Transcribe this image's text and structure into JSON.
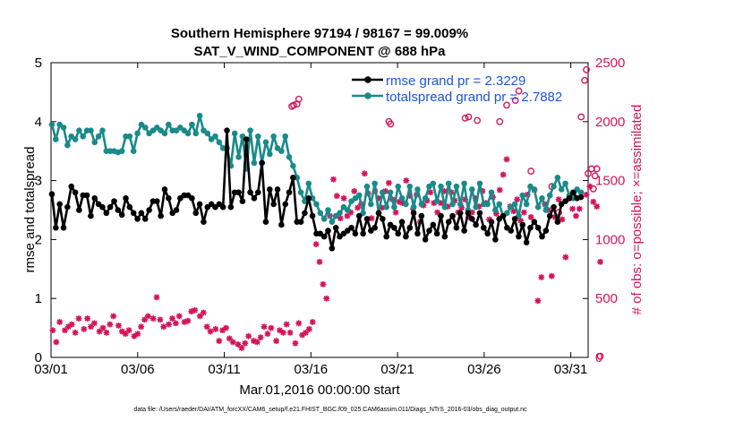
{
  "chart_data": {
    "type": "line",
    "title": "Southern Hemisphere 97194 / 98167 = 99.009%",
    "subtitle": "SAT_V_WIND_COMPONENT @ 688 hPa",
    "xlabel": "Mar.01,2016 00:00:00 start",
    "ylabel": "rmse and totalspread",
    "ylabel_right": "# of obs: o=possible; ×=assimilated",
    "footer": "data file: /Users/raeder/DAI/ATM_forcXX/CAM6_setup/f.e21.FHIST_BGC.f09_025.CAM6assim.011/Diags_NTrS_2016-03/obs_diag_output.nc",
    "x_ticks": [
      "03/01",
      "03/06",
      "03/11",
      "03/16",
      "03/21",
      "03/26",
      "03/31"
    ],
    "x_tick_days": [
      0,
      5,
      10,
      15,
      20,
      25,
      30
    ],
    "xlim": [
      0,
      31
    ],
    "ylim": [
      0,
      5
    ],
    "y_ticks": [
      "0",
      "1",
      "2",
      "3",
      "4",
      "5"
    ],
    "ylim_right": [
      0,
      2500
    ],
    "y_ticks_right": [
      "0",
      "500",
      "1000",
      "1500",
      "2000",
      "2500"
    ],
    "legend": [
      "rmse grand pr = 2.3229",
      "totalspread grand pr = 2.7882"
    ],
    "colors": {
      "rmse": "#000000",
      "spread": "#1a8a8a",
      "obs": "#d4145a",
      "legend_text": "#1a56d6"
    },
    "series": [
      {
        "name": "rmse",
        "values": [
          2.77,
          2.2,
          2.6,
          2.2,
          2.55,
          2.9,
          2.8,
          2.5,
          2.75,
          2.75,
          2.4,
          2.7,
          2.6,
          2.55,
          2.45,
          2.55,
          2.65,
          2.5,
          2.42,
          2.7,
          2.55,
          2.45,
          2.35,
          2.45,
          2.35,
          2.5,
          2.65,
          2.65,
          2.4,
          2.85,
          2.7,
          2.45,
          2.5,
          2.7,
          2.75,
          2.75,
          2.7,
          2.45,
          2.6,
          2.3,
          2.55,
          2.6,
          2.55,
          2.6,
          2.55,
          3.85,
          2.55,
          2.8,
          2.8,
          2.65,
          3.7,
          2.8,
          2.7,
          2.8,
          3.3,
          2.3,
          2.85,
          2.6,
          2.85,
          2.25,
          2.6,
          2.8,
          3.05,
          2.3,
          2.3,
          2.45,
          2.7,
          2.4,
          2.1,
          2.1,
          2.05,
          2.15,
          1.85,
          2.2,
          2.05,
          2.1,
          2.15,
          2.2,
          2.1,
          2.4,
          2.1,
          2.35,
          2.15,
          2.2,
          2.45,
          2.35,
          2.05,
          2.25,
          2.2,
          2.1,
          2.3,
          2.05,
          2.2,
          2.45,
          2.1,
          2.4,
          2.0,
          2.15,
          2.25,
          2.1,
          2.4,
          2.05,
          2.3,
          2.4,
          2.2,
          2.45,
          2.15,
          2.45,
          2.35,
          2.25,
          2.45,
          2.2,
          2.1,
          2.3,
          2.0,
          2.35,
          2.4,
          2.2,
          2.15,
          2.35,
          2.05,
          2.25,
          1.95,
          2.2,
          2.3,
          2.2,
          2.05,
          2.15,
          2.4,
          2.55,
          2.3,
          2.6,
          2.65,
          2.7,
          2.8,
          2.7,
          2.72
        ]
      },
      {
        "name": "totalspread",
        "values": [
          3.95,
          3.7,
          3.95,
          3.9,
          3.6,
          3.75,
          3.7,
          3.85,
          3.75,
          3.85,
          3.85,
          3.65,
          3.75,
          3.85,
          3.5,
          3.5,
          3.5,
          3.48,
          3.5,
          3.75,
          3.75,
          3.5,
          3.8,
          3.95,
          3.9,
          3.8,
          3.85,
          3.9,
          3.85,
          3.8,
          3.95,
          3.85,
          3.85,
          3.9,
          3.85,
          3.8,
          3.95,
          3.8,
          4.1,
          3.85,
          3.8,
          3.7,
          3.75,
          3.65,
          3.55,
          3.55,
          3.25,
          3.8,
          3.4,
          3.75,
          3.2,
          3.85,
          3.3,
          3.75,
          3.3,
          3.65,
          3.45,
          3.75,
          3.55,
          3.5,
          3.75,
          3.4,
          3.25,
          3.05,
          2.8,
          2.65,
          2.95,
          2.7,
          2.6,
          2.45,
          2.35,
          2.5,
          2.3,
          2.4,
          2.45,
          2.55,
          2.5,
          2.65,
          2.7,
          2.75,
          2.45,
          2.9,
          2.6,
          2.95,
          2.45,
          2.8,
          2.55,
          2.8,
          2.55,
          2.9,
          2.7,
          2.6,
          2.9,
          2.55,
          2.85,
          2.6,
          2.7,
          2.9,
          2.95,
          2.65,
          2.9,
          2.55,
          2.95,
          2.6,
          2.9,
          2.6,
          2.95,
          2.5,
          2.85,
          2.55,
          2.95,
          2.6,
          2.6,
          2.8,
          2.5,
          2.6,
          2.4,
          2.45,
          2.55,
          2.6,
          2.4,
          2.75,
          2.6,
          2.9,
          2.85,
          2.55,
          2.7,
          2.5,
          2.75,
          2.9,
          3.05,
          2.85,
          2.95,
          2.75,
          2.7,
          2.85,
          2.8
        ]
      },
      {
        "name": "obs_possible",
        "points": [
          [
            13.9,
            2130
          ],
          [
            14.0,
            2140
          ],
          [
            14.2,
            2150
          ],
          [
            14.3,
            2190
          ],
          [
            19.5,
            2000
          ],
          [
            19.6,
            1980
          ],
          [
            23.9,
            2030
          ],
          [
            24.1,
            2040
          ],
          [
            24.6,
            2010
          ],
          [
            25.9,
            2000
          ],
          [
            26.3,
            2140
          ],
          [
            26.8,
            2180
          ],
          [
            27.0,
            2260
          ],
          [
            27.7,
            1580
          ],
          [
            28.9,
            1450
          ],
          [
            29.3,
            1230
          ],
          [
            30.6,
            2040
          ],
          [
            30.8,
            2350
          ],
          [
            30.9,
            2440
          ],
          [
            31.0,
            1560
          ],
          [
            31.2,
            1600
          ],
          [
            31.3,
            1430
          ],
          [
            31.4,
            1540
          ],
          [
            31.5,
            1600
          ],
          [
            31.7,
            10
          ]
        ]
      },
      {
        "name": "obs_assimilated",
        "points": [
          [
            0.1,
            230
          ],
          [
            0.3,
            130
          ],
          [
            0.5,
            300
          ],
          [
            0.8,
            230
          ],
          [
            1.0,
            260
          ],
          [
            1.2,
            280
          ],
          [
            1.4,
            210
          ],
          [
            1.6,
            330
          ],
          [
            1.9,
            240
          ],
          [
            2.1,
            330
          ],
          [
            2.3,
            260
          ],
          [
            2.5,
            290
          ],
          [
            2.8,
            220
          ],
          [
            3.0,
            250
          ],
          [
            3.2,
            210
          ],
          [
            3.4,
            280
          ],
          [
            3.6,
            350
          ],
          [
            3.9,
            270
          ],
          [
            4.1,
            220
          ],
          [
            4.3,
            200
          ],
          [
            4.5,
            230
          ],
          [
            4.8,
            180
          ],
          [
            5.0,
            200
          ],
          [
            5.2,
            260
          ],
          [
            5.4,
            320
          ],
          [
            5.6,
            350
          ],
          [
            5.9,
            330
          ],
          [
            6.1,
            510
          ],
          [
            6.3,
            320
          ],
          [
            6.5,
            260
          ],
          [
            6.8,
            280
          ],
          [
            7.0,
            330
          ],
          [
            7.2,
            290
          ],
          [
            7.4,
            350
          ],
          [
            7.7,
            300
          ],
          [
            7.9,
            310
          ],
          [
            8.1,
            390
          ],
          [
            8.3,
            400
          ],
          [
            8.6,
            350
          ],
          [
            8.8,
            380
          ],
          [
            9.0,
            260
          ],
          [
            9.2,
            220
          ],
          [
            9.5,
            240
          ],
          [
            9.7,
            140
          ],
          [
            9.9,
            230
          ],
          [
            10.1,
            250
          ],
          [
            10.3,
            160
          ],
          [
            10.5,
            130
          ],
          [
            10.8,
            110
          ],
          [
            11.0,
            80
          ],
          [
            11.2,
            120
          ],
          [
            11.4,
            180
          ],
          [
            11.7,
            140
          ],
          [
            11.9,
            130
          ],
          [
            12.1,
            170
          ],
          [
            12.3,
            260
          ],
          [
            12.5,
            200
          ],
          [
            12.7,
            250
          ],
          [
            13.0,
            140
          ],
          [
            13.2,
            230
          ],
          [
            13.4,
            210
          ],
          [
            13.6,
            280
          ],
          [
            13.8,
            210
          ],
          [
            14.1,
            120
          ],
          [
            14.3,
            290
          ],
          [
            14.5,
            190
          ],
          [
            14.7,
            210
          ],
          [
            14.9,
            240
          ],
          [
            15.1,
            300
          ],
          [
            15.3,
            960
          ],
          [
            15.5,
            810
          ],
          [
            15.7,
            620
          ],
          [
            15.9,
            500
          ],
          [
            16.1,
            1200
          ],
          [
            16.3,
            1510
          ],
          [
            16.5,
            1370
          ],
          [
            16.7,
            1180
          ],
          [
            16.9,
            1350
          ],
          [
            17.1,
            1200
          ],
          [
            17.3,
            1230
          ],
          [
            17.5,
            1410
          ],
          [
            17.7,
            1270
          ],
          [
            17.9,
            1300
          ],
          [
            18.1,
            1560
          ],
          [
            18.3,
            1390
          ],
          [
            18.5,
            1180
          ],
          [
            18.7,
            1410
          ],
          [
            18.9,
            1350
          ],
          [
            19.1,
            1270
          ],
          [
            19.3,
            1410
          ],
          [
            19.5,
            1480
          ],
          [
            19.7,
            1340
          ],
          [
            19.9,
            1230
          ],
          [
            20.1,
            1320
          ],
          [
            20.3,
            1310
          ],
          [
            20.5,
            1500
          ],
          [
            20.7,
            1370
          ],
          [
            20.9,
            1260
          ],
          [
            21.1,
            1380
          ],
          [
            21.3,
            1150
          ],
          [
            21.5,
            1290
          ],
          [
            21.7,
            1330
          ],
          [
            21.9,
            1400
          ],
          [
            22.1,
            1310
          ],
          [
            22.3,
            1230
          ],
          [
            22.5,
            1310
          ],
          [
            22.7,
            1410
          ],
          [
            22.9,
            1280
          ],
          [
            23.1,
            1400
          ],
          [
            23.3,
            1330
          ],
          [
            23.5,
            1230
          ],
          [
            23.7,
            1270
          ],
          [
            23.9,
            1340
          ],
          [
            24.1,
            1190
          ],
          [
            24.3,
            1230
          ],
          [
            24.5,
            1350
          ],
          [
            24.7,
            1280
          ],
          [
            24.9,
            1410
          ],
          [
            25.1,
            1310
          ],
          [
            25.3,
            1170
          ],
          [
            25.5,
            1360
          ],
          [
            25.7,
            1220
          ],
          [
            25.9,
            1420
          ],
          [
            26.1,
            1550
          ],
          [
            26.3,
            1680
          ],
          [
            26.5,
            1280
          ],
          [
            26.7,
            1240
          ],
          [
            26.9,
            1340
          ],
          [
            27.1,
            1160
          ],
          [
            27.3,
            1230
          ],
          [
            27.5,
            1380
          ],
          [
            27.7,
            1190
          ],
          [
            27.9,
            1420
          ],
          [
            28.1,
            480
          ],
          [
            28.3,
            680
          ],
          [
            28.5,
            1300
          ],
          [
            28.7,
            1250
          ],
          [
            28.9,
            690
          ],
          [
            29.1,
            1190
          ],
          [
            29.3,
            1340
          ],
          [
            29.5,
            1170
          ],
          [
            29.7,
            850
          ],
          [
            29.9,
            1350
          ],
          [
            30.1,
            1260
          ],
          [
            30.3,
            1200
          ],
          [
            30.5,
            1260
          ],
          [
            30.9,
            1380
          ],
          [
            31.1,
            1450
          ],
          [
            31.3,
            1320
          ],
          [
            31.5,
            1280
          ],
          [
            31.7,
            810
          ]
        ]
      }
    ]
  }
}
